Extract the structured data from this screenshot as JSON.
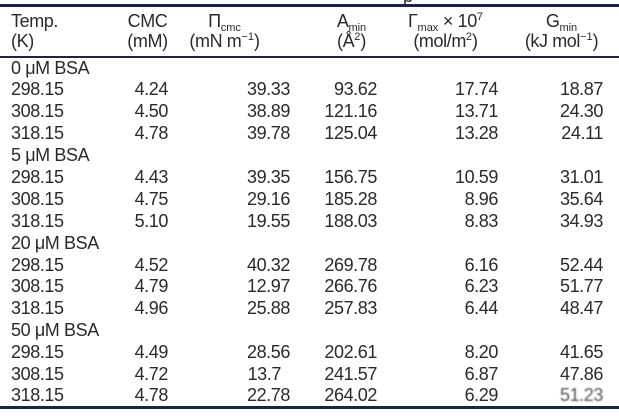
{
  "caption_fragment": "p",
  "colors": {
    "rule": "#1c2444",
    "text": "#2a2a2a"
  },
  "header": {
    "columns": [
      {
        "symbol": "Temp.",
        "sub": "",
        "suffix": "",
        "sup": "",
        "unit_pre": "(K)",
        "unit_sup": "",
        "unit_post": ""
      },
      {
        "symbol": "CMC",
        "sub": "",
        "suffix": "",
        "sup": "",
        "unit_pre": "(mM)",
        "unit_sup": "",
        "unit_post": ""
      },
      {
        "symbol": "Π",
        "sub": "cmc",
        "suffix": "",
        "sup": "",
        "unit_pre": "(mN m",
        "unit_sup": "−1",
        "unit_post": ")"
      },
      {
        "symbol": "A",
        "sub": "min",
        "suffix": "",
        "sup": "",
        "unit_pre": "(Å",
        "unit_sup": "2",
        "unit_post": ")"
      },
      {
        "symbol": "Γ",
        "sub": "max",
        "suffix": " × 10",
        "sup": "7",
        "unit_pre": "(mol/m",
        "unit_sup": "2",
        "unit_post": ")"
      },
      {
        "symbol": "G",
        "sub": "min",
        "suffix": "",
        "sup": "",
        "unit_pre": "(kJ mol",
        "unit_sup": "−1",
        "unit_post": ")"
      }
    ]
  },
  "sections": [
    {
      "label": "0 μM BSA",
      "rows": [
        [
          "298.15",
          "4.24",
          "39.33",
          "93.62",
          "17.74",
          "18.87"
        ],
        [
          "308.15",
          "4.50",
          "38.89",
          "121.16",
          "13.71",
          "24.30"
        ],
        [
          "318.15",
          "4.78",
          "39.78",
          "125.04",
          "13.28",
          "24.11"
        ]
      ]
    },
    {
      "label": "5 μM BSA",
      "rows": [
        [
          "298.15",
          "4.43",
          "39.35",
          "156.75",
          "10.59",
          "31.01"
        ],
        [
          "308.15",
          "4.75",
          "29.16",
          "185.28",
          "8.96",
          "35.64"
        ],
        [
          "318.15",
          "5.10",
          "19.55",
          "188.03",
          "8.83",
          "34.93"
        ]
      ]
    },
    {
      "label": "20 μM BSA",
      "rows": [
        [
          "298.15",
          "4.52",
          "40.32",
          "269.78",
          "6.16",
          "52.44"
        ],
        [
          "308.15",
          "4.79",
          "12.97",
          "266.76",
          "6.23",
          "51.77"
        ],
        [
          "318.15",
          "4.96",
          "25.88",
          "257.83",
          "6.44",
          "48.47"
        ]
      ]
    },
    {
      "label": "50 μM BSA",
      "rows": [
        [
          "298.15",
          "4.49",
          "28.56",
          "202.61",
          "8.20",
          "41.65"
        ],
        [
          "308.15",
          "4.72",
          "13.7",
          "241.57",
          "6.87",
          "47.86"
        ],
        [
          "318.15",
          "4.78",
          "22.78",
          "264.02",
          "6.29",
          "51.23"
        ]
      ]
    }
  ]
}
